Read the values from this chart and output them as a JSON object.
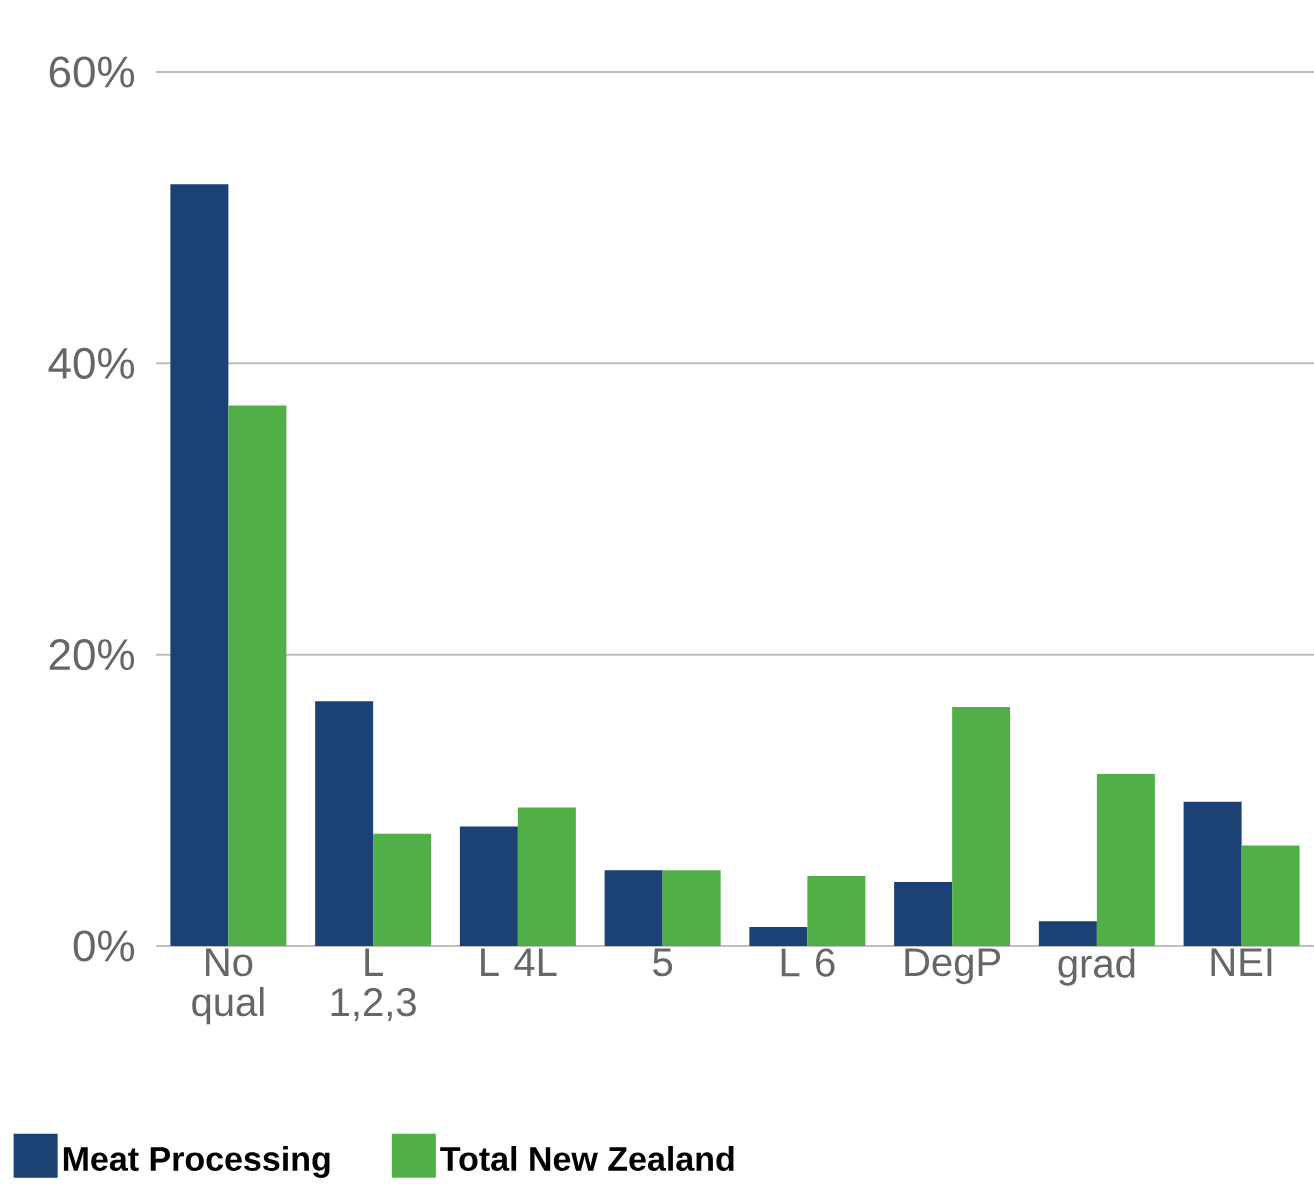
{
  "chart_data": {
    "type": "bar",
    "categories": [
      "No qual",
      "L 1,2,3",
      "L 4L",
      "5",
      "L 6",
      "DegP",
      "grad",
      "NEI"
    ],
    "series": [
      {
        "name": "Meat Processing",
        "color": "#1c4175",
        "values": [
          52.3,
          16.8,
          8.2,
          5.2,
          1.3,
          4.4,
          1.7,
          9.9
        ]
      },
      {
        "name": "Total New Zealand",
        "color": "#50b047",
        "values": [
          37.1,
          7.7,
          9.5,
          5.2,
          4.8,
          16.4,
          11.8,
          6.9
        ]
      }
    ],
    "ylim": [
      0,
      60
    ],
    "yticks": [
      {
        "value": 0,
        "label": "0%"
      },
      {
        "value": 20,
        "label": "20%"
      },
      {
        "value": 40,
        "label": "40%"
      },
      {
        "value": 60,
        "label": "60%"
      }
    ],
    "grid": "y",
    "legend": "bottom"
  }
}
